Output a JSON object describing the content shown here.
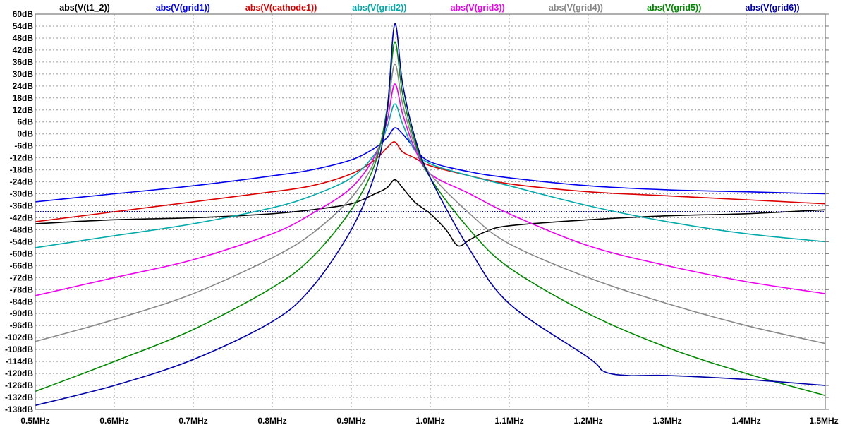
{
  "chart_data": {
    "type": "line",
    "title": "",
    "xlabel": "",
    "ylabel": "",
    "xlim": [
      0.5,
      1.5
    ],
    "ylim": [
      -138,
      60
    ],
    "grid": true,
    "legend_placement": "top",
    "x_ticks": [
      0.5,
      0.6,
      0.7,
      0.8,
      0.9,
      1.0,
      1.1,
      1.2,
      1.3,
      1.4,
      1.5
    ],
    "x_tick_labels": [
      "0.5MHz",
      "0.6MHz",
      "0.7MHz",
      "0.8MHz",
      "0.9MHz",
      "1.0MHz",
      "1.1MHz",
      "1.2MHz",
      "1.3MHz",
      "1.4MHz",
      "1.5MHz"
    ],
    "y_ticks": [
      60,
      54,
      48,
      42,
      36,
      30,
      24,
      18,
      12,
      6,
      0,
      -6,
      -12,
      -18,
      -24,
      -30,
      -36,
      -42,
      -48,
      -54,
      -60,
      -66,
      -72,
      -78,
      -84,
      -90,
      -96,
      -102,
      -108,
      -114,
      -120,
      -126,
      -132,
      -138
    ],
    "y_tick_labels": [
      "60dB",
      "54dB",
      "48dB",
      "42dB",
      "36dB",
      "30dB",
      "24dB",
      "18dB",
      "12dB",
      "6dB",
      "0dB",
      "-6dB",
      "-12dB",
      "-18dB",
      "-24dB",
      "-30dB",
      "-36dB",
      "-42dB",
      "-48dB",
      "-54dB",
      "-60dB",
      "-66dB",
      "-72dB",
      "-78dB",
      "-84dB",
      "-90dB",
      "-96dB",
      "-102dB",
      "-108dB",
      "-114dB",
      "-120dB",
      "-126dB",
      "-132dB",
      "-138dB"
    ],
    "reference_line": {
      "y": -39,
      "color": "#0000aa",
      "style": "dotted"
    },
    "series": [
      {
        "name": "abs(V(t1_2))",
        "color": "#000000",
        "x": [
          0.5,
          0.6,
          0.7,
          0.8,
          0.85,
          0.9,
          0.93,
          0.945,
          0.955,
          0.965,
          0.98,
          1.0,
          1.02,
          1.035,
          1.05,
          1.07,
          1.1,
          1.2,
          1.3,
          1.4,
          1.5
        ],
        "y": [
          -45,
          -43,
          -42,
          -40,
          -38,
          -35,
          -30,
          -27,
          -23,
          -27,
          -34,
          -40,
          -48,
          -56,
          -53,
          -49,
          -46,
          -43,
          -41,
          -40,
          -38
        ]
      },
      {
        "name": "abs(V(grid1))",
        "color": "#0000ee",
        "x": [
          0.5,
          0.6,
          0.7,
          0.8,
          0.85,
          0.9,
          0.93,
          0.945,
          0.955,
          0.965,
          0.98,
          1.0,
          1.05,
          1.1,
          1.2,
          1.3,
          1.4,
          1.5
        ],
        "y": [
          -34,
          -30,
          -26,
          -21,
          -18,
          -13,
          -7,
          -2,
          3,
          0,
          -7,
          -14,
          -19,
          -22,
          -26,
          -28,
          -29,
          -30
        ]
      },
      {
        "name": "abs(V(cathode1))",
        "color": "#dd0000",
        "x": [
          0.5,
          0.6,
          0.7,
          0.8,
          0.85,
          0.9,
          0.93,
          0.945,
          0.955,
          0.965,
          0.98,
          1.0,
          1.05,
          1.1,
          1.2,
          1.3,
          1.4,
          1.5
        ],
        "y": [
          -44,
          -39,
          -34,
          -29,
          -26,
          -20,
          -13,
          -7,
          -4,
          -9,
          -12,
          -16,
          -21,
          -25,
          -29,
          -31,
          -33,
          -35
        ]
      },
      {
        "name": "abs(V(grid2))",
        "color": "#00aaaa",
        "x": [
          0.5,
          0.6,
          0.7,
          0.8,
          0.85,
          0.9,
          0.93,
          0.945,
          0.955,
          0.965,
          0.98,
          1.0,
          1.05,
          1.1,
          1.2,
          1.3,
          1.4,
          1.5
        ],
        "y": [
          -57,
          -51,
          -45,
          -37,
          -31,
          -22,
          -10,
          3,
          15,
          5,
          -8,
          -15,
          -21,
          -26,
          -36,
          -44,
          -50,
          -54
        ]
      },
      {
        "name": "abs(V(grid3))",
        "color": "#ee00ee",
        "x": [
          0.5,
          0.6,
          0.7,
          0.8,
          0.85,
          0.9,
          0.93,
          0.945,
          0.955,
          0.965,
          0.98,
          1.0,
          1.05,
          1.1,
          1.2,
          1.3,
          1.4,
          1.5
        ],
        "y": [
          -81,
          -72,
          -63,
          -50,
          -40,
          -27,
          -11,
          6,
          25,
          10,
          -7,
          -20,
          -30,
          -40,
          -56,
          -66,
          -74,
          -80
        ]
      },
      {
        "name": "abs(V(grid4))",
        "color": "#888888",
        "x": [
          0.5,
          0.6,
          0.7,
          0.8,
          0.85,
          0.9,
          0.93,
          0.945,
          0.955,
          0.965,
          0.98,
          1.0,
          1.05,
          1.1,
          1.2,
          1.3,
          1.4,
          1.5
        ],
        "y": [
          -104,
          -93,
          -80,
          -62,
          -50,
          -32,
          -13,
          10,
          35,
          15,
          -5,
          -20,
          -40,
          -55,
          -72,
          -85,
          -96,
          -105
        ]
      },
      {
        "name": "abs(V(grid5))",
        "color": "#008800",
        "x": [
          0.5,
          0.6,
          0.7,
          0.8,
          0.85,
          0.9,
          0.93,
          0.945,
          0.955,
          0.965,
          0.98,
          1.0,
          1.05,
          1.1,
          1.2,
          1.3,
          1.4,
          1.5
        ],
        "y": [
          -129,
          -114,
          -98,
          -77,
          -62,
          -38,
          -15,
          12,
          46,
          20,
          -3,
          -22,
          -48,
          -67,
          -90,
          -107,
          -120,
          -131
        ]
      },
      {
        "name": "abs(V(grid6))",
        "color": "#0000aa",
        "x": [
          0.5,
          0.6,
          0.7,
          0.8,
          0.85,
          0.9,
          0.93,
          0.945,
          0.955,
          0.965,
          0.98,
          1.0,
          1.05,
          1.1,
          1.2,
          1.22,
          1.25,
          1.3,
          1.4,
          1.5
        ],
        "y": [
          -136,
          -126,
          -113,
          -94,
          -77,
          -48,
          -20,
          10,
          55,
          25,
          -1,
          -22,
          -58,
          -85,
          -112,
          -119,
          -121,
          -121,
          -123,
          -126
        ]
      }
    ]
  }
}
